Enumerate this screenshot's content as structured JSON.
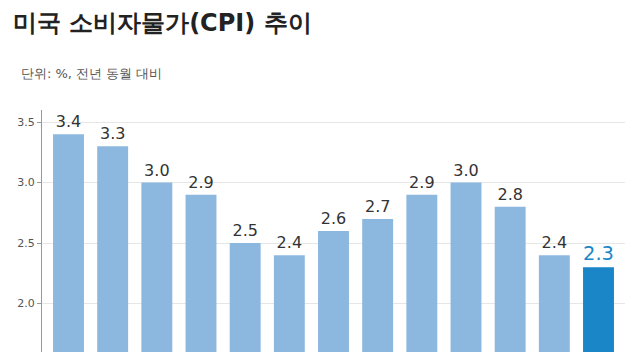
{
  "chart_data": {
    "type": "bar",
    "title": "미국 소비자물가(CPI) 추이",
    "subtitle": "단위: %, 전년 동월 대비",
    "categories": [
      null,
      null,
      null,
      null,
      null,
      null,
      null,
      null,
      null,
      null,
      null,
      null,
      null
    ],
    "values": [
      3.4,
      3.3,
      3.0,
      2.9,
      2.5,
      2.4,
      2.6,
      2.7,
      2.9,
      3.0,
      2.8,
      2.4,
      2.3
    ],
    "value_labels": [
      "3.4",
      "3.3",
      "3.0",
      "2.9",
      "2.5",
      "2.4",
      "2.6",
      "2.7",
      "2.9",
      "3.0",
      "2.8",
      "2.4",
      "2.3"
    ],
    "colors": [
      "#8cb8e0",
      "#8cb8e0",
      "#8cb8e0",
      "#8cb8e0",
      "#8cb8e0",
      "#8cb8e0",
      "#8cb8e0",
      "#8cb8e0",
      "#8cb8e0",
      "#8cb8e0",
      "#8cb8e0",
      "#8cb8e0",
      "#1a86c8"
    ],
    "ylim": [
      1.6,
      3.6
    ],
    "yticks": [
      {
        "value": 2,
        "label": "2.0"
      },
      2.5,
      {
        "value": 3,
        "label": "3.0"
      },
      3.5
    ],
    "grid": true,
    "data_labels": true,
    "tick_labels": "y"
  }
}
